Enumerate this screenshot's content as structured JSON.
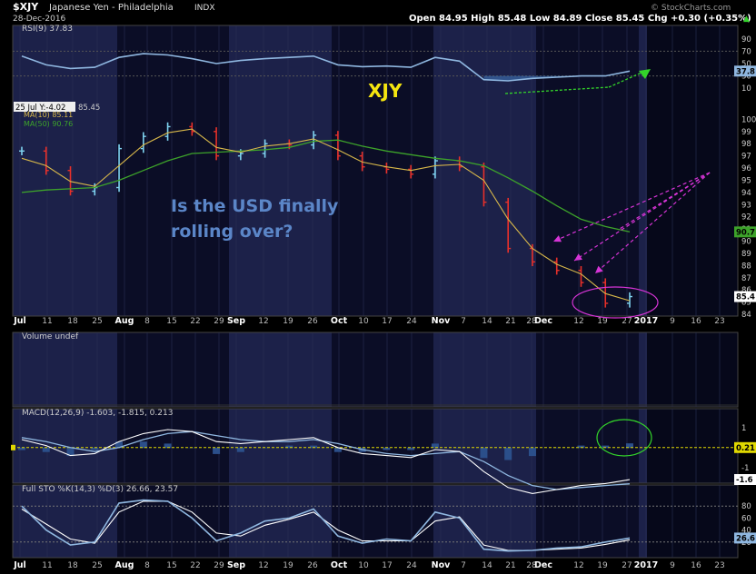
{
  "header": {
    "symbol": "$XJY",
    "name": "Japanese Yen - Philadelphia",
    "exchange": "INDX",
    "date": "28-Dec-2016",
    "ohlc": "Open 84.95  High 85.48  Low 84.89  Close 85.45  Chg +0.30 (+0.35%)",
    "ohlc_arrow": "▲",
    "watermark": "© StockCharts.com"
  },
  "panels": {
    "rsi_legend": "RSI(9) 37.83",
    "price_tooltip": "25 Jul Y:-4.02",
    "price_value": "85.45",
    "ma10_legend": "MA(10) 85.11",
    "ma50_legend": "MA(50) 90.76",
    "volume_legend": "Volume undef",
    "macd_legend": "MACD(12,26,9) -1.603, -1.815, 0.213",
    "sto_legend": "Full STO %K(14,3) %D(3) 26.66, 23.57"
  },
  "annotations": {
    "title_label": "XJY",
    "question": [
      "Is the USD finally",
      "rolling over?"
    ]
  },
  "axes": {
    "rsi_ticks": [
      "90",
      "70",
      "50",
      "30",
      "10"
    ],
    "rsi_value_tag": "37.8",
    "price_ticks": [
      "100",
      "99",
      "98",
      "97",
      "96",
      "95",
      "94",
      "93",
      "92",
      "91",
      "90",
      "89",
      "88",
      "87",
      "86",
      "85",
      "84"
    ],
    "price_tags": [
      "90.7",
      "85.4"
    ],
    "macd_ticks": [
      "1",
      "-1"
    ],
    "macd_tags": [
      "0.21",
      "-1.6"
    ],
    "sto_ticks": [
      "80",
      "60",
      "40",
      "20"
    ],
    "sto_value_tag": "26.6",
    "x_labels": [
      {
        "t": "Jul",
        "b": true
      },
      {
        "t": "11"
      },
      {
        "t": "18"
      },
      {
        "t": "25"
      },
      {
        "t": "Aug",
        "b": true
      },
      {
        "t": "8"
      },
      {
        "t": "15"
      },
      {
        "t": "22"
      },
      {
        "t": "29"
      },
      {
        "t": "Sep",
        "b": true
      },
      {
        "t": "12"
      },
      {
        "t": "19"
      },
      {
        "t": "26"
      },
      {
        "t": "Oct",
        "b": true
      },
      {
        "t": "10"
      },
      {
        "t": "17"
      },
      {
        "t": "24"
      },
      {
        "t": "Nov",
        "b": true
      },
      {
        "t": "7"
      },
      {
        "t": "14"
      },
      {
        "t": "21"
      },
      {
        "t": "28"
      },
      {
        "t": "Dec",
        "b": true
      },
      {
        "t": "12"
      },
      {
        "t": "19"
      },
      {
        "t": "27"
      },
      {
        "t": "2017",
        "b": true
      },
      {
        "t": "9"
      },
      {
        "t": "16"
      },
      {
        "t": "23"
      }
    ]
  },
  "colors": {
    "background": "#000000",
    "panel_band_dark": "#0b0d26",
    "panel_band_light": "#1c2149",
    "up_bar": "#7fd3f0",
    "down_bar": "#e8302a",
    "ma10": "#d8b84a",
    "ma50": "#3da32a",
    "rsi_line": "#8fb7e0",
    "macd_line": "#ffffff",
    "annotation_magenta": "#d634d6",
    "annotation_green": "#33d42a",
    "question_text": "#5b86c8",
    "label_yellow": "#f5e510"
  },
  "chart_data": {
    "type": "line",
    "title": "$XJY Japanese Yen - Philadelphia INDX",
    "dates": [
      "Jul 1",
      "Jul 11",
      "Jul 18",
      "Jul 25",
      "Aug 1",
      "Aug 8",
      "Aug 15",
      "Aug 22",
      "Aug 29",
      "Sep 6",
      "Sep 12",
      "Sep 19",
      "Sep 26",
      "Oct 3",
      "Oct 10",
      "Oct 17",
      "Oct 24",
      "Nov 1",
      "Nov 7",
      "Nov 14",
      "Nov 21",
      "Nov 28",
      "Dec 5",
      "Dec 12",
      "Dec 19",
      "Dec 28"
    ],
    "series": [
      {
        "name": "Close",
        "values": [
          97.4,
          95.8,
          94.1,
          94.4,
          97.6,
          98.6,
          99.4,
          99.0,
          97.0,
          97.2,
          98.0,
          97.9,
          98.7,
          97.0,
          96.1,
          95.9,
          95.5,
          96.6,
          96.1,
          93.2,
          89.4,
          88.3,
          87.6,
          86.6,
          84.9,
          85.45
        ]
      },
      {
        "name": "MA(10)",
        "values": [
          96.8,
          96.2,
          94.9,
          94.5,
          96.2,
          97.9,
          98.9,
          99.2,
          97.7,
          97.3,
          97.8,
          98.0,
          98.4,
          97.5,
          96.5,
          96.1,
          95.8,
          96.2,
          96.3,
          95.0,
          91.8,
          89.4,
          88.1,
          87.3,
          85.7,
          85.11
        ]
      },
      {
        "name": "MA(50)",
        "values": [
          94.0,
          94.2,
          94.3,
          94.4,
          95.0,
          95.8,
          96.6,
          97.2,
          97.3,
          97.4,
          97.5,
          97.7,
          98.2,
          98.3,
          97.8,
          97.4,
          97.1,
          96.8,
          96.6,
          96.2,
          95.2,
          94.1,
          92.9,
          91.8,
          91.2,
          90.76
        ]
      },
      {
        "name": "RSI(9)",
        "values": [
          62,
          48,
          42,
          44,
          60,
          66,
          64,
          58,
          50,
          55,
          58,
          60,
          62,
          48,
          45,
          46,
          44,
          60,
          54,
          24,
          22,
          26,
          28,
          30,
          30,
          37.83
        ]
      },
      {
        "name": "MACD(12,26,9)",
        "values": [
          0.4,
          0.1,
          -0.4,
          -0.3,
          0.3,
          0.7,
          0.9,
          0.8,
          0.3,
          0.2,
          0.3,
          0.4,
          0.5,
          0.0,
          -0.3,
          -0.4,
          -0.5,
          -0.1,
          -0.2,
          -1.2,
          -2.0,
          -2.3,
          -2.1,
          -1.9,
          -1.8,
          -1.603
        ]
      },
      {
        "name": "Signal",
        "values": [
          0.5,
          0.3,
          0.0,
          -0.2,
          0.0,
          0.4,
          0.7,
          0.8,
          0.6,
          0.4,
          0.3,
          0.3,
          0.4,
          0.2,
          -0.1,
          -0.3,
          -0.4,
          -0.3,
          -0.2,
          -0.7,
          -1.4,
          -1.9,
          -2.1,
          -2.0,
          -1.9,
          -1.815
        ]
      },
      {
        "name": "%K(14,3)",
        "values": [
          80,
          40,
          15,
          20,
          85,
          90,
          88,
          60,
          22,
          35,
          55,
          60,
          75,
          30,
          18,
          25,
          22,
          70,
          60,
          8,
          5,
          6,
          10,
          12,
          20,
          26.66
        ]
      },
      {
        "name": "%D(3)",
        "values": [
          75,
          50,
          25,
          18,
          70,
          88,
          88,
          70,
          35,
          30,
          48,
          58,
          70,
          40,
          22,
          22,
          22,
          55,
          62,
          15,
          6,
          6,
          8,
          10,
          16,
          23.57
        ]
      }
    ],
    "ylim_price": [
      84,
      101
    ],
    "ylim_rsi": [
      0,
      100
    ],
    "ylim_macd": [
      -1.6,
      1.4
    ],
    "ylim_sto": [
      0,
      100
    ]
  }
}
